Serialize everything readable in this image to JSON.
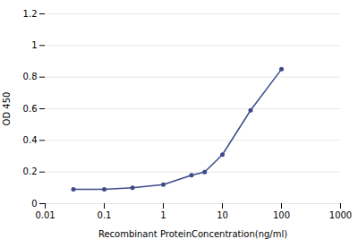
{
  "chart_data": {
    "type": "line",
    "xlabel": "Recombinant ProteinConcentration(ng/ml)",
    "ylabel": "OD 450",
    "x": [
      0.03,
      0.1,
      0.3,
      1.0,
      3.0,
      5.0,
      10.0,
      30.0,
      100.0
    ],
    "values": [
      0.09,
      0.09,
      0.1,
      0.12,
      0.18,
      0.2,
      0.31,
      0.59,
      0.85
    ],
    "color": "#3d4a8a",
    "marker": "circle",
    "log": "x",
    "xlim": [
      0.01,
      1000
    ],
    "ylim": [
      0,
      1.2
    ],
    "xticks": [
      0.01,
      0.1,
      1,
      10,
      100,
      1000
    ],
    "yticks": [
      0,
      0.2,
      0.4,
      0.6,
      0.8,
      1,
      1.2
    ],
    "grid": true
  }
}
